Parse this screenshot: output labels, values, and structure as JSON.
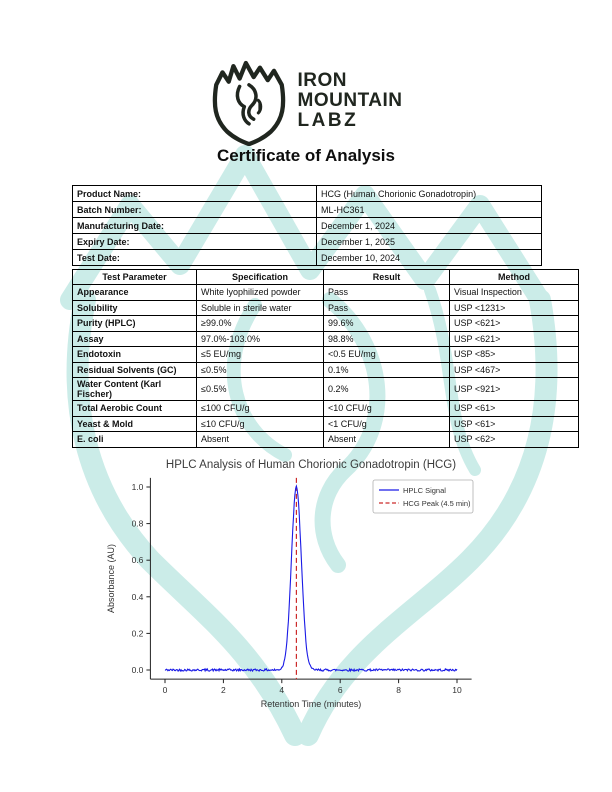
{
  "page": {
    "title": "Certificate of Analysis"
  },
  "logo": {
    "line1": "IRON",
    "line2": "MOUNTAIN",
    "line3": "LABZ"
  },
  "info_table": {
    "rows": [
      {
        "label": "Product Name:",
        "value": "HCG (Human Chorionic Gonadotropin)"
      },
      {
        "label": "Batch Number:",
        "value": "ML-HC361"
      },
      {
        "label": "Manufacturing Date:",
        "value": "December 1, 2024"
      },
      {
        "label": "Expiry Date:",
        "value": "December 1, 2025"
      },
      {
        "label": "Test Date:",
        "value": "December 10, 2024"
      }
    ]
  },
  "results_table": {
    "headers": [
      "Test Parameter",
      "Specification",
      "Result",
      "Method"
    ],
    "rows": [
      [
        "Appearance",
        "White lyophilized powder",
        "Pass",
        "Visual Inspection"
      ],
      [
        "Solubility",
        "Soluble in sterile water",
        "Pass",
        "USP <1231>"
      ],
      [
        "Purity (HPLC)",
        "≥99.0%",
        "99.6%",
        "USP <621>"
      ],
      [
        "Assay",
        "97.0%-103.0%",
        "98.8%",
        "USP <621>"
      ],
      [
        "Endotoxin",
        "≤5 EU/mg",
        "<0.5 EU/mg",
        "USP <85>"
      ],
      [
        "Residual Solvents (GC)",
        "≤0.5%",
        "0.1%",
        "USP <467>"
      ],
      [
        "Water Content (Karl Fischer)",
        "≤0.5%",
        "0.2%",
        "USP <921>"
      ],
      [
        "Total Aerobic Count",
        "≤100 CFU/g",
        "<10 CFU/g",
        "USP <61>"
      ],
      [
        "Yeast & Mold",
        "≤10 CFU/g",
        "<1 CFU/g",
        "USP <61>"
      ],
      [
        "E. coli",
        "Absent",
        "Absent",
        "USP <62>"
      ]
    ]
  },
  "chart_data": {
    "type": "line",
    "title": "HPLC Analysis of Human Chorionic Gonadotropin (HCG)",
    "xlabel": "Retention Time (minutes)",
    "ylabel": "Absorbance (AU)",
    "xlim": [
      0,
      10
    ],
    "ylim": [
      0,
      1
    ],
    "xticks": [
      0,
      2,
      4,
      6,
      8,
      10
    ],
    "yticks": [
      0.0,
      0.2,
      0.4,
      0.6,
      0.8,
      1.0
    ],
    "grid": false,
    "legend_position": "upper right",
    "series": [
      {
        "name": "HPLC Signal",
        "color": "#1a1ae6",
        "style": "solid",
        "shape": "flat noisy baseline at 0 AU with one Gaussian peak",
        "peak": {
          "center_min": 4.5,
          "height_au": 1.0,
          "sigma_min": 0.17
        },
        "noise_au": 0.006
      },
      {
        "name": "HCG Peak (4.5 min)",
        "color": "#cc2a2a",
        "style": "dashed-vertical",
        "x_min": 4.5
      }
    ],
    "colors": {
      "title": "#3c3c3c",
      "axis": "#222222",
      "ticks": "#333333"
    }
  },
  "watermark": {
    "color": "#cbece8",
    "shape": "iron-mountain-labz-shield-logo"
  }
}
